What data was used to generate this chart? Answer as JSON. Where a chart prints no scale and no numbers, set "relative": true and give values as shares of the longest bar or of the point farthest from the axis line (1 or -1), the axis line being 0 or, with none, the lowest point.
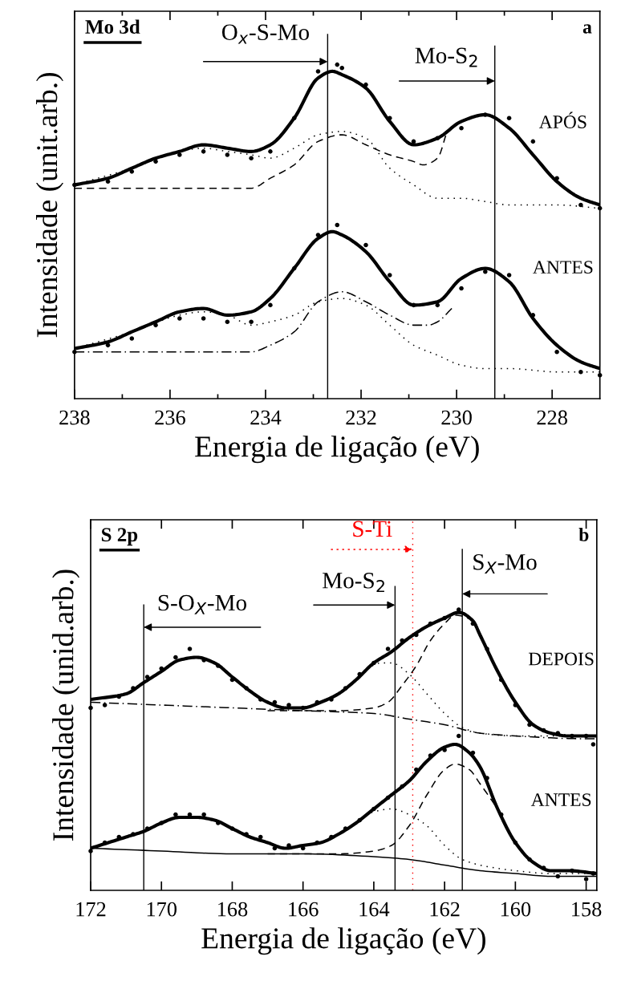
{
  "chart_data": [
    {
      "type": "line",
      "relative": true,
      "xlabel": "Energia de ligação (eV)",
      "ylabel": "Intensidade (unit.arb.)",
      "tick_labels": "x",
      "xlim": [
        238,
        227
      ],
      "xticks": [
        238,
        {
          "value": 237,
          "label": null
        },
        236,
        {
          "value": 235,
          "label": null
        },
        234,
        {
          "value": 233,
          "label": null
        },
        232,
        {
          "value": 231,
          "label": null
        },
        230,
        {
          "value": 229,
          "label": null
        },
        228
      ],
      "annotations": [
        "Mo 3d",
        "a",
        "APÓS",
        "ANTES"
      ],
      "ref_lines": [
        {
          "axis": "x",
          "value": 232.7,
          "label": "O$_{x}$-S-Mo"
        },
        {
          "axis": "x",
          "value": 229.2,
          "label": "Mo-S$_{2}$"
        }
      ],
      "series": [
        {
          "type": "scatter",
          "marker": "circle",
          "color": "#000000",
          "x": [
            238.0,
            237.3,
            236.8,
            236.3,
            235.8,
            235.3,
            234.8,
            234.3,
            233.9,
            233.4,
            232.9,
            232.5,
            232.4,
            231.9,
            231.4,
            230.9,
            230.4,
            229.9,
            229.4,
            228.9,
            228.4,
            227.9,
            227.4,
            227.0
          ],
          "values": [
            0.64,
            0.65,
            0.68,
            0.71,
            0.73,
            0.74,
            0.73,
            0.72,
            0.74,
            0.84,
            0.98,
            1.0,
            0.99,
            0.94,
            0.84,
            0.77,
            0.78,
            0.81,
            0.85,
            0.84,
            0.77,
            0.66,
            0.58,
            0.57
          ]
        },
        {
          "line_style": "solid",
          "color": "#000000",
          "x": [
            238.0,
            237.3,
            236.8,
            236.3,
            235.8,
            235.3,
            234.8,
            234.3,
            233.9,
            233.4,
            232.9,
            232.6,
            232.4,
            231.9,
            231.4,
            230.9,
            230.4,
            229.9,
            229.4,
            228.9,
            228.4,
            227.9,
            227.4,
            227.0
          ],
          "values": [
            0.64,
            0.66,
            0.69,
            0.72,
            0.74,
            0.76,
            0.75,
            0.74,
            0.76,
            0.84,
            0.96,
            0.98,
            0.97,
            0.93,
            0.83,
            0.76,
            0.78,
            0.83,
            0.85,
            0.81,
            0.73,
            0.65,
            0.6,
            0.58
          ]
        },
        {
          "line_style": "dotted",
          "color": "#000000",
          "x": [
            238.0,
            236.8,
            235.8,
            235.3,
            234.8,
            234.3,
            233.9,
            233.4,
            232.9,
            232.4,
            231.9,
            231.4,
            230.9,
            230.4,
            229.9,
            229.4,
            228.9,
            227.9,
            227.0
          ],
          "values": [
            0.64,
            0.69,
            0.74,
            0.75,
            0.74,
            0.73,
            0.72,
            0.75,
            0.79,
            0.8,
            0.78,
            0.69,
            0.64,
            0.6,
            0.6,
            0.59,
            0.58,
            0.58,
            0.57
          ]
        },
        {
          "line_style": "dashed",
          "color": "#000000",
          "x": [
            238.0,
            236.8,
            235.8,
            234.8,
            234.3,
            233.9,
            233.4,
            232.9,
            232.4,
            231.9,
            231.4,
            230.9,
            230.7,
            230.4,
            230.2
          ],
          "values": [
            0.63,
            0.63,
            0.63,
            0.63,
            0.63,
            0.66,
            0.7,
            0.77,
            0.79,
            0.76,
            0.73,
            0.71,
            0.7,
            0.72,
            0.8
          ]
        },
        {
          "type": "scatter",
          "marker": "circle",
          "color": "#000000",
          "x": [
            238.0,
            237.3,
            236.8,
            236.3,
            235.8,
            235.3,
            234.8,
            234.3,
            233.9,
            233.4,
            232.9,
            232.5,
            231.9,
            231.4,
            230.9,
            230.4,
            229.9,
            229.4,
            228.9,
            228.4,
            227.9,
            227.4,
            227.0
          ],
          "values": [
            0.14,
            0.16,
            0.18,
            0.22,
            0.24,
            0.24,
            0.23,
            0.23,
            0.28,
            0.39,
            0.49,
            0.52,
            0.46,
            0.37,
            0.28,
            0.28,
            0.33,
            0.38,
            0.37,
            0.25,
            0.14,
            0.08,
            0.07
          ]
        },
        {
          "line_style": "solid",
          "color": "#000000",
          "x": [
            238.0,
            237.3,
            236.8,
            236.3,
            235.8,
            235.3,
            234.8,
            234.3,
            233.9,
            233.4,
            232.9,
            232.6,
            232.4,
            231.9,
            231.4,
            230.9,
            230.4,
            229.9,
            229.4,
            228.9,
            228.4,
            227.9,
            227.4,
            227.0
          ],
          "values": [
            0.15,
            0.17,
            0.2,
            0.23,
            0.26,
            0.27,
            0.25,
            0.26,
            0.3,
            0.39,
            0.48,
            0.5,
            0.49,
            0.44,
            0.35,
            0.28,
            0.29,
            0.36,
            0.39,
            0.35,
            0.24,
            0.16,
            0.11,
            0.09
          ]
        },
        {
          "line_style": "dotted",
          "color": "#000000",
          "x": [
            238.0,
            236.8,
            235.8,
            235.3,
            234.8,
            234.3,
            233.9,
            233.4,
            232.9,
            232.4,
            231.9,
            231.4,
            230.9,
            230.4,
            229.9,
            229.4,
            228.9,
            227.9,
            227.0
          ],
          "values": [
            0.15,
            0.2,
            0.25,
            0.26,
            0.25,
            0.22,
            0.23,
            0.25,
            0.29,
            0.3,
            0.28,
            0.22,
            0.16,
            0.13,
            0.1,
            0.09,
            0.09,
            0.08,
            0.08
          ]
        },
        {
          "line_style": "dashdot",
          "color": "#000000",
          "x": [
            238.0,
            235.8,
            234.3,
            233.9,
            233.4,
            232.9,
            232.4,
            231.9,
            231.4,
            230.9,
            230.6,
            230.4,
            230.1
          ],
          "values": [
            0.14,
            0.14,
            0.14,
            0.16,
            0.2,
            0.29,
            0.32,
            0.29,
            0.25,
            0.22,
            0.22,
            0.23,
            0.27
          ]
        }
      ]
    },
    {
      "type": "line",
      "relative": true,
      "xlabel": "Energia de ligação (eV)",
      "ylabel": "Intensidade (unid.arb.)",
      "tick_labels": "x",
      "xlim": [
        172,
        157.7
      ],
      "xticks": [
        172,
        170,
        168,
        166,
        164,
        162,
        160,
        158
      ],
      "annotations": [
        "S 2p",
        "b",
        "DEPOIS",
        "ANTES"
      ],
      "ref_lines": [
        {
          "axis": "x",
          "value": 170.5,
          "label": "S-O$_{X}$-Mo"
        },
        {
          "axis": "x",
          "value": 163.4,
          "label": "Mo-S$_{2}$"
        },
        {
          "axis": "x",
          "value": 162.9,
          "label": "S-Ti",
          "color": "#ff0000",
          "line_style": "dotted"
        },
        {
          "axis": "x",
          "value": 161.5,
          "label": "S$_{X}$-Mo"
        }
      ],
      "series": [
        {
          "type": "scatter",
          "marker": "circle",
          "color": "#000000",
          "x": [
            172,
            171.6,
            171.2,
            170.8,
            170.4,
            170,
            169.6,
            169.2,
            168.8,
            168.4,
            168,
            167.6,
            167.2,
            166.8,
            166.4,
            166,
            165.6,
            165.2,
            164.8,
            164.4,
            164,
            163.6,
            163.2,
            162.8,
            162.4,
            162,
            161.6,
            161.2,
            160.8,
            160.4,
            160,
            159.6,
            159.2,
            158.8,
            158.4,
            158,
            157.8
          ],
          "values": [
            0.65,
            0.66,
            0.69,
            0.72,
            0.76,
            0.79,
            0.83,
            0.86,
            0.82,
            0.8,
            0.75,
            0.72,
            0.68,
            0.67,
            0.66,
            0.65,
            0.67,
            0.68,
            0.72,
            0.77,
            0.81,
            0.86,
            0.89,
            0.91,
            0.95,
            0.97,
            1.0,
            0.95,
            0.86,
            0.75,
            0.66,
            0.59,
            0.57,
            0.56,
            0.55,
            0.55,
            0.52
          ]
        },
        {
          "line_style": "solid",
          "color": "#000000",
          "x": [
            172,
            171,
            170.5,
            170,
            169.5,
            169,
            168.5,
            168,
            167.5,
            167,
            166.5,
            166,
            165.5,
            165,
            164.5,
            164,
            163.5,
            163,
            162.5,
            162,
            161.6,
            161.2,
            161,
            160.5,
            160,
            159.5,
            159,
            158.5,
            157.7
          ],
          "values": [
            0.68,
            0.7,
            0.74,
            0.78,
            0.82,
            0.83,
            0.81,
            0.76,
            0.71,
            0.67,
            0.65,
            0.65,
            0.67,
            0.7,
            0.75,
            0.81,
            0.85,
            0.9,
            0.94,
            0.97,
            0.99,
            0.96,
            0.91,
            0.78,
            0.67,
            0.59,
            0.56,
            0.55,
            0.55
          ]
        },
        {
          "line_style": "dashed",
          "color": "#000000",
          "x": [
            167,
            166,
            165,
            164,
            163.6,
            163.2,
            162.8,
            162.4,
            162,
            161.7,
            161.2,
            161
          ],
          "values": [
            0.64,
            0.64,
            0.64,
            0.65,
            0.67,
            0.73,
            0.8,
            0.89,
            0.95,
            0.98,
            0.96,
            0.91
          ]
        },
        {
          "line_style": "dotted",
          "color": "#000000",
          "x": [
            164.2,
            163.8,
            163.5,
            163,
            162.5,
            162,
            161.5,
            161,
            160,
            159,
            157.7
          ],
          "values": [
            0.79,
            0.81,
            0.81,
            0.77,
            0.7,
            0.63,
            0.58,
            0.56,
            0.55,
            0.55,
            0.55
          ]
        },
        {
          "line_style": "dashdot",
          "color": "#000000",
          "x": [
            172,
            170,
            168,
            166,
            164,
            163,
            162,
            161,
            160,
            158,
            157.7
          ],
          "values": [
            0.67,
            0.66,
            0.65,
            0.64,
            0.63,
            0.61,
            0.59,
            0.56,
            0.55,
            0.54,
            0.54
          ]
        },
        {
          "type": "scatter",
          "marker": "circle",
          "color": "#000000",
          "x": [
            172,
            171.6,
            171.2,
            170.8,
            170.4,
            170,
            169.6,
            169.2,
            168.8,
            168.4,
            168,
            167.6,
            167.2,
            166.8,
            166.4,
            166,
            165.6,
            165.2,
            164.8,
            164.4,
            164,
            163.6,
            163.2,
            162.8,
            162.4,
            162,
            161.6,
            161.2,
            160.8,
            160.4,
            160,
            159.6,
            159.2,
            158.8,
            158.4,
            158,
            157.8
          ],
          "values": [
            0.14,
            0.17,
            0.19,
            0.2,
            0.22,
            0.24,
            0.27,
            0.27,
            0.27,
            0.24,
            0.22,
            0.2,
            0.19,
            0.15,
            0.16,
            0.15,
            0.17,
            0.19,
            0.22,
            0.25,
            0.29,
            0.33,
            0.37,
            0.43,
            0.48,
            0.5,
            0.55,
            0.49,
            0.4,
            0.27,
            0.17,
            0.11,
            0.08,
            0.05,
            0.07,
            0.04,
            0.06
          ]
        },
        {
          "line_style": "solid",
          "color": "#000000",
          "x": [
            172,
            171,
            170.5,
            170,
            169.5,
            169,
            168.5,
            168,
            167.5,
            167,
            166.5,
            166,
            165.5,
            165,
            164.5,
            164,
            163.5,
            163,
            162.5,
            162,
            161.7,
            161.3,
            161,
            160.5,
            160,
            159.5,
            159,
            158.5,
            157.7
          ],
          "values": [
            0.15,
            0.19,
            0.21,
            0.24,
            0.26,
            0.26,
            0.25,
            0.22,
            0.19,
            0.17,
            0.15,
            0.16,
            0.17,
            0.2,
            0.24,
            0.29,
            0.34,
            0.39,
            0.46,
            0.51,
            0.52,
            0.49,
            0.44,
            0.29,
            0.17,
            0.1,
            0.07,
            0.07,
            0.06
          ]
        },
        {
          "line_style": "dashed",
          "color": "#000000",
          "x": [
            167,
            166,
            165,
            164,
            163.5,
            163,
            162.5,
            162,
            161.7,
            161.3,
            161,
            160.5
          ],
          "values": [
            0.13,
            0.13,
            0.13,
            0.14,
            0.16,
            0.23,
            0.34,
            0.43,
            0.45,
            0.43,
            0.38,
            0.29
          ]
        },
        {
          "line_style": "dotted",
          "color": "#000000",
          "x": [
            164.5,
            164,
            163.5,
            163,
            162.5,
            162,
            161.5,
            161,
            160,
            159,
            157.7
          ],
          "values": [
            0.24,
            0.28,
            0.29,
            0.27,
            0.23,
            0.16,
            0.11,
            0.09,
            0.07,
            0.06,
            0.06
          ]
        },
        {
          "line_style": "solid",
          "color": "#000000",
          "x": [
            172,
            170,
            168,
            166,
            164,
            163,
            162,
            161,
            160,
            159,
            157.7
          ],
          "values": [
            0.15,
            0.14,
            0.13,
            0.13,
            0.12,
            0.11,
            0.09,
            0.07,
            0.06,
            0.05,
            0.05
          ]
        }
      ]
    }
  ]
}
